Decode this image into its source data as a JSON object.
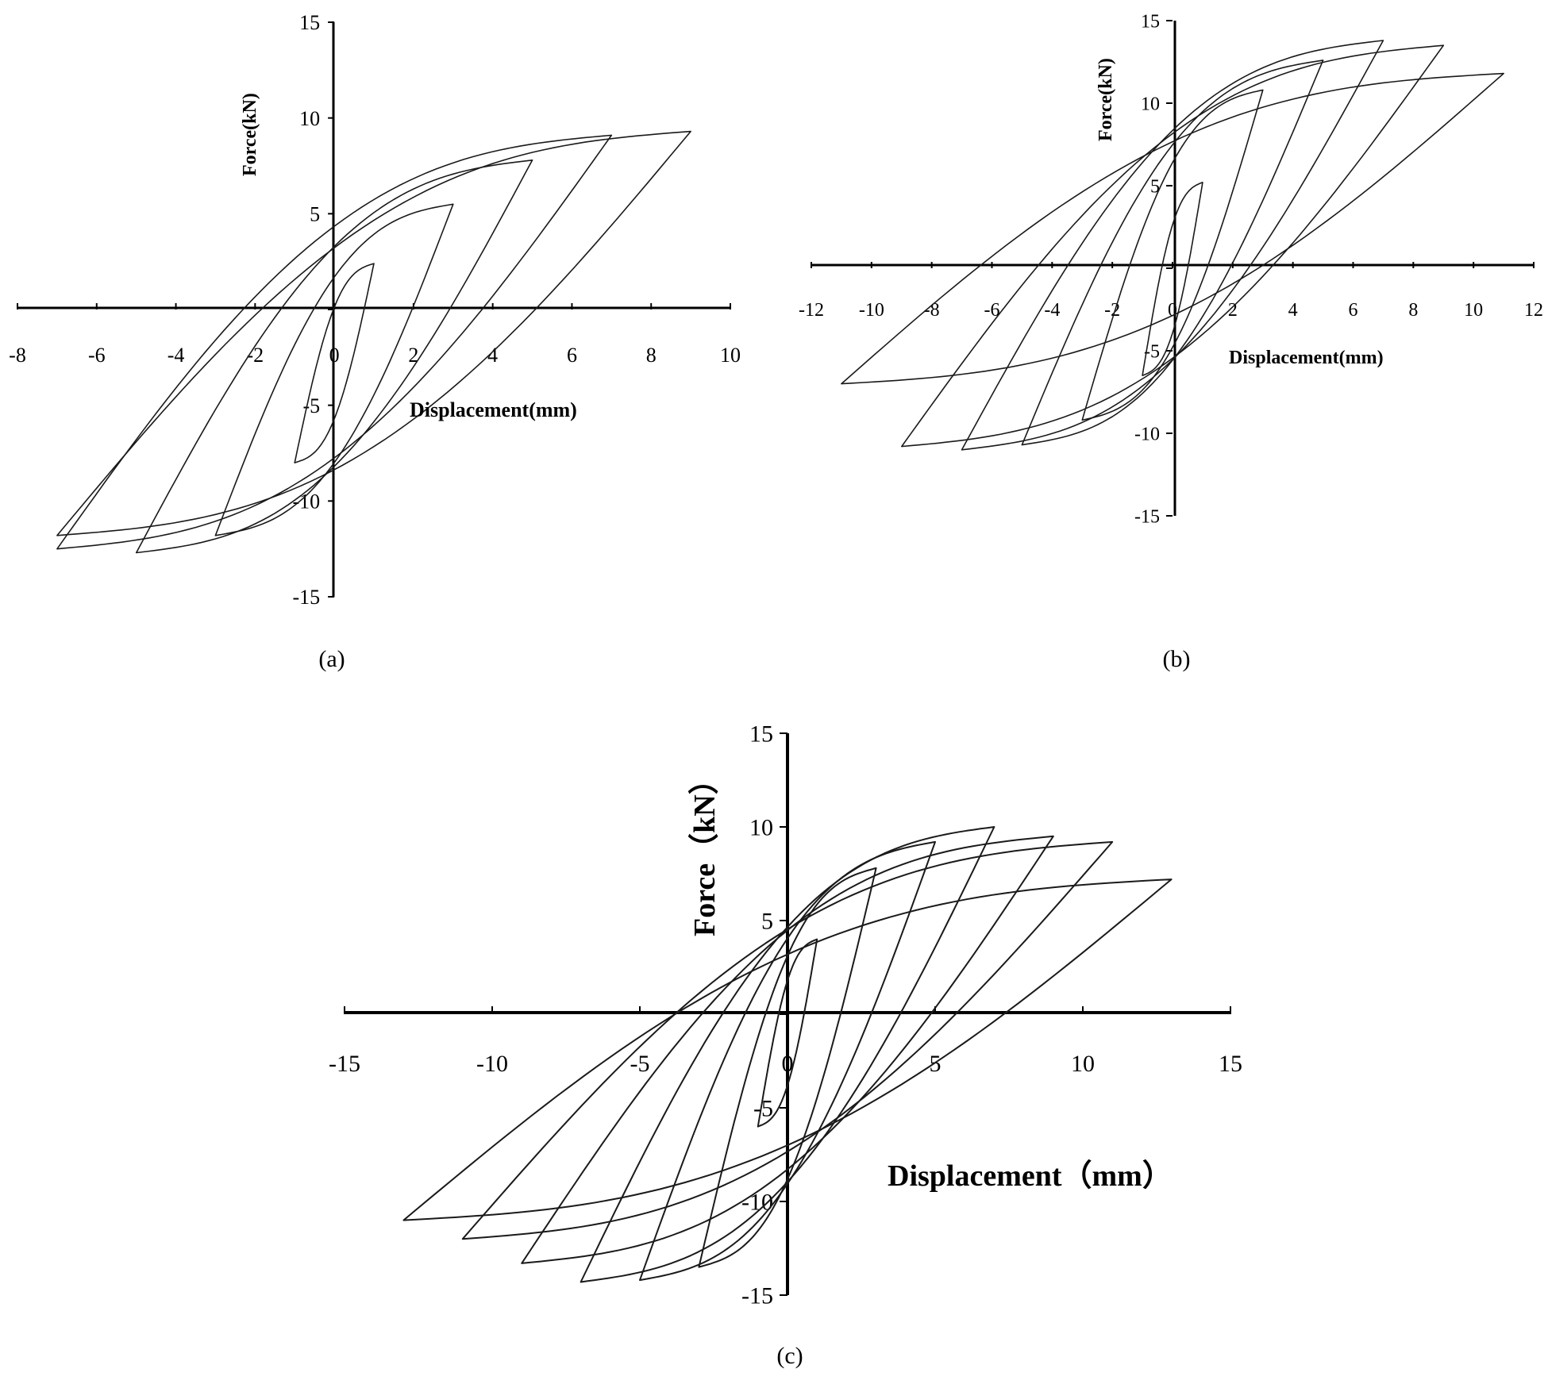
{
  "colors": {
    "axis": "#000000",
    "curve": "#1a1a1a",
    "background": "#ffffff"
  },
  "chart_data": [
    {
      "panel": "(a)",
      "type": "line",
      "xlabel": "Displacement(mm)",
      "ylabel": "Force(kN)",
      "xlim": [
        -8,
        10
      ],
      "ylim": [
        -15,
        15
      ],
      "x_ticks": [
        -8,
        -6,
        -4,
        -2,
        0,
        2,
        4,
        6,
        8,
        10
      ],
      "y_ticks": [
        -15,
        -10,
        -5,
        0,
        5,
        10,
        15
      ],
      "grid": false,
      "legend": "none",
      "cycles": [
        {
          "amplitude_pos": 1.0,
          "amplitude_neg": -1.0,
          "peak_force_pos": 2.4,
          "peak_force_neg": -8.0
        },
        {
          "amplitude_pos": 3.0,
          "amplitude_neg": -3.0,
          "peak_force_pos": 5.5,
          "peak_force_neg": -11.8
        },
        {
          "amplitude_pos": 5.0,
          "amplitude_neg": -5.0,
          "peak_force_pos": 7.8,
          "peak_force_neg": -12.7
        },
        {
          "amplitude_pos": 7.0,
          "amplitude_neg": -7.0,
          "peak_force_pos": 9.1,
          "peak_force_neg": -12.5
        },
        {
          "amplitude_pos": 9.0,
          "amplitude_neg": -7.0,
          "peak_force_pos": 9.3,
          "peak_force_neg": -11.8
        }
      ]
    },
    {
      "panel": "(b)",
      "type": "line",
      "xlabel": "Displacement(mm)",
      "ylabel": "Force(kN)",
      "xlim": [
        -12,
        12
      ],
      "ylim": [
        -15,
        15
      ],
      "x_ticks": [
        -12,
        -10,
        -8,
        -6,
        -4,
        -2,
        0,
        2,
        4,
        6,
        8,
        10,
        12
      ],
      "y_ticks": [
        -15,
        -10,
        -5,
        0,
        5,
        10,
        15
      ],
      "grid": false,
      "legend": "none",
      "cycles": [
        {
          "amplitude_pos": 1.0,
          "amplitude_neg": -1.0,
          "peak_force_pos": 5.2,
          "peak_force_neg": -6.5
        },
        {
          "amplitude_pos": 3.0,
          "amplitude_neg": -3.0,
          "peak_force_pos": 10.8,
          "peak_force_neg": -9.2
        },
        {
          "amplitude_pos": 5.0,
          "amplitude_neg": -5.0,
          "peak_force_pos": 12.6,
          "peak_force_neg": -10.7
        },
        {
          "amplitude_pos": 7.0,
          "amplitude_neg": -7.0,
          "peak_force_pos": 13.8,
          "peak_force_neg": -11.0
        },
        {
          "amplitude_pos": 9.0,
          "amplitude_neg": -9.0,
          "peak_force_pos": 13.5,
          "peak_force_neg": -10.8
        },
        {
          "amplitude_pos": 11.0,
          "amplitude_neg": -11.0,
          "peak_force_pos": 11.8,
          "peak_force_neg": -7.0
        }
      ]
    },
    {
      "panel": "(c)",
      "type": "line",
      "xlabel": "Displacement（mm）",
      "ylabel": "Force（kN）",
      "xlim": [
        -15,
        15
      ],
      "ylim": [
        -15,
        15
      ],
      "x_ticks": [
        -15,
        -10,
        -5,
        0,
        5,
        10,
        15
      ],
      "y_ticks": [
        -15,
        -10,
        -5,
        0,
        5,
        10,
        15
      ],
      "grid": false,
      "legend": "none",
      "cycles": [
        {
          "amplitude_pos": 1.0,
          "amplitude_neg": -1.0,
          "peak_force_pos": 4.0,
          "peak_force_neg": -6.0
        },
        {
          "amplitude_pos": 3.0,
          "amplitude_neg": -3.0,
          "peak_force_pos": 7.8,
          "peak_force_neg": -13.5
        },
        {
          "amplitude_pos": 5.0,
          "amplitude_neg": -5.0,
          "peak_force_pos": 9.2,
          "peak_force_neg": -14.2
        },
        {
          "amplitude_pos": 7.0,
          "amplitude_neg": -7.0,
          "peak_force_pos": 10.0,
          "peak_force_neg": -14.3
        },
        {
          "amplitude_pos": 9.0,
          "amplitude_neg": -9.0,
          "peak_force_pos": 9.5,
          "peak_force_neg": -13.3
        },
        {
          "amplitude_pos": 11.0,
          "amplitude_neg": -11.0,
          "peak_force_pos": 9.2,
          "peak_force_neg": -12.0
        },
        {
          "amplitude_pos": 13.0,
          "amplitude_neg": -13.0,
          "peak_force_pos": 7.2,
          "peak_force_neg": -11.0
        }
      ]
    }
  ]
}
